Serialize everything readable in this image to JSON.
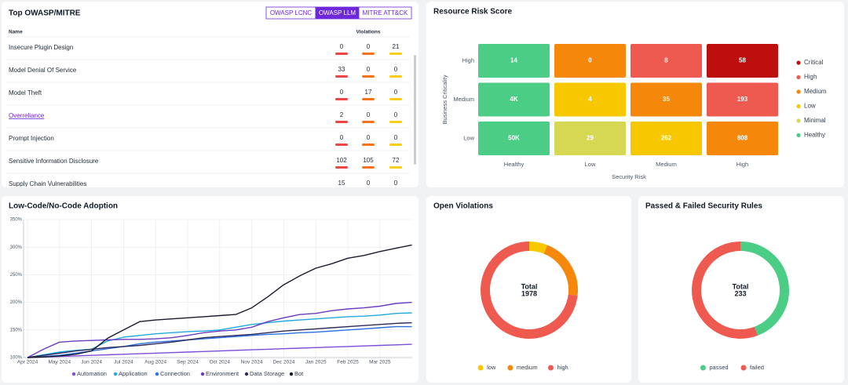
{
  "violations_panel": {
    "title": "Top OWASP/MITRE",
    "tabs": [
      "OWASP LCNC",
      "OWASP LLM",
      "MITRE ATT&CK"
    ],
    "active_tab": 1,
    "columns": [
      "Name",
      "Violations"
    ],
    "violation_colors": [
      "#ef4444",
      "#f97316",
      "#facc15"
    ],
    "linked_row": 3,
    "rows": [
      [
        "Insecure Plugin Design",
        0,
        0,
        21
      ],
      [
        "Model Denial Of Service",
        33,
        0,
        0
      ],
      [
        "Model Theft",
        0,
        17,
        0
      ],
      [
        "Overreliance",
        2,
        0,
        0
      ],
      [
        "Prompt Injection",
        0,
        0,
        0
      ],
      [
        "Sensitive Information Disclosure",
        102,
        105,
        72
      ],
      [
        "Supply Chain Vulnerabilities",
        15,
        0,
        0
      ]
    ]
  },
  "chart_data": [
    {
      "type": "heatmap",
      "title": "Resource Risk Score",
      "x_label": "Security Risk",
      "y_label": "Business Criticality",
      "x_categories": [
        "Healthy",
        "Low",
        "Medium",
        "High"
      ],
      "y_categories": [
        "High",
        "Medium",
        "Low"
      ],
      "values": [
        [
          14,
          0,
          8,
          58
        ],
        [
          4000,
          4,
          35,
          193
        ],
        [
          50000,
          29,
          262,
          808
        ]
      ],
      "value_labels": [
        [
          "14",
          "0",
          "8",
          "58"
        ],
        [
          "4K",
          "4",
          "35",
          "193"
        ],
        [
          "50K",
          "29",
          "262",
          "808"
        ]
      ],
      "colors": [
        [
          "#4ccd86",
          "#f5870a",
          "#ef5a50",
          "#bd0f0d"
        ],
        [
          "#4ccd86",
          "#f7c800",
          "#f5870a",
          "#ef5a50"
        ],
        [
          "#4ccd86",
          "#d6d752",
          "#f7c800",
          "#f5870a"
        ]
      ],
      "legend": [
        {
          "name": "Critical",
          "color": "#bd0f0d"
        },
        {
          "name": "High",
          "color": "#ef5a50"
        },
        {
          "name": "Medium",
          "color": "#f5870a"
        },
        {
          "name": "Low",
          "color": "#f7c800"
        },
        {
          "name": "Minimal",
          "color": "#d6d752"
        },
        {
          "name": "Healthy",
          "color": "#4ccd86"
        }
      ]
    },
    {
      "type": "line",
      "title": "Low-Code/No-Code Adoption",
      "categories": [
        "Apr 2024",
        null,
        "May 2024",
        null,
        "Jun 2024",
        null,
        "Jul 2024",
        null,
        "Aug 2024",
        null,
        "Sep 2024",
        null,
        "Oct 2024",
        null,
        "Nov 2024",
        null,
        "Dec 2024",
        null,
        "Jan 2025",
        null,
        "Feb 2025",
        null,
        "Mar 2025",
        null,
        null
      ],
      "ylim": [
        100,
        350
      ],
      "yticks": [
        {
          "value": 100,
          "label": "100%"
        },
        {
          "value": 150,
          "label": "150%"
        },
        {
          "value": 200,
          "label": "200%"
        },
        {
          "value": 250,
          "label": "250%"
        },
        {
          "value": 300,
          "label": "300%"
        },
        {
          "value": 350,
          "label": "350%"
        }
      ],
      "grid": true,
      "legend": "bottom",
      "series": [
        {
          "name": "Automation",
          "color": "#7c4ddb",
          "values": [
            100,
            101,
            102,
            103,
            104,
            105,
            106,
            107,
            108,
            109,
            110,
            111,
            112,
            113,
            114,
            115,
            116,
            117,
            118,
            119,
            120,
            121,
            122,
            123,
            124
          ]
        },
        {
          "name": "Application",
          "color": "#1fa9e0",
          "values": [
            100,
            105,
            110,
            113,
            115,
            130,
            137,
            140,
            143,
            145,
            147,
            148,
            150,
            155,
            160,
            163,
            166,
            168,
            170,
            172,
            174,
            175,
            177,
            180,
            181
          ]
        },
        {
          "name": "Connection",
          "color": "#2b6fe0",
          "values": [
            100,
            102,
            104,
            108,
            112,
            116,
            120,
            125,
            128,
            130,
            132,
            134,
            136,
            138,
            140,
            142,
            143,
            145,
            146,
            148,
            150,
            152,
            154,
            156,
            156
          ]
        },
        {
          "name": "Environment",
          "color": "#6a3bc4",
          "values": [
            100,
            115,
            128,
            130,
            131,
            132,
            133,
            133,
            134,
            136,
            140,
            145,
            148,
            150,
            155,
            165,
            172,
            178,
            180,
            185,
            188,
            190,
            193,
            198,
            200
          ]
        },
        {
          "name": "Data Storage",
          "color": "#2d2a5a",
          "values": [
            100,
            104,
            108,
            112,
            115,
            118,
            120,
            122,
            125,
            128,
            132,
            136,
            138,
            140,
            142,
            145,
            148,
            150,
            152,
            154,
            156,
            158,
            160,
            162,
            163
          ]
        },
        {
          "name": "Bot",
          "color": "#1a1a2e",
          "values": [
            100,
            101,
            103,
            106,
            112,
            135,
            150,
            165,
            168,
            170,
            172,
            174,
            176,
            178,
            190,
            210,
            232,
            248,
            262,
            270,
            280,
            285,
            292,
            298,
            304
          ]
        }
      ]
    },
    {
      "type": "pie",
      "title": "Open Violations",
      "categories": [
        "low",
        "medium",
        "high"
      ],
      "values": [
        120,
        410,
        1448
      ],
      "colors": [
        "#f7c800",
        "#f5870a",
        "#ef5a50"
      ],
      "center_label": "Total",
      "total": 1978
    },
    {
      "type": "pie",
      "title": "Passed & Failed Security Rules",
      "categories": [
        "passed",
        "failed"
      ],
      "values": [
        103,
        130
      ],
      "colors": [
        "#4ccd86",
        "#ef5a50"
      ],
      "center_label": "Total",
      "total": 233
    }
  ]
}
